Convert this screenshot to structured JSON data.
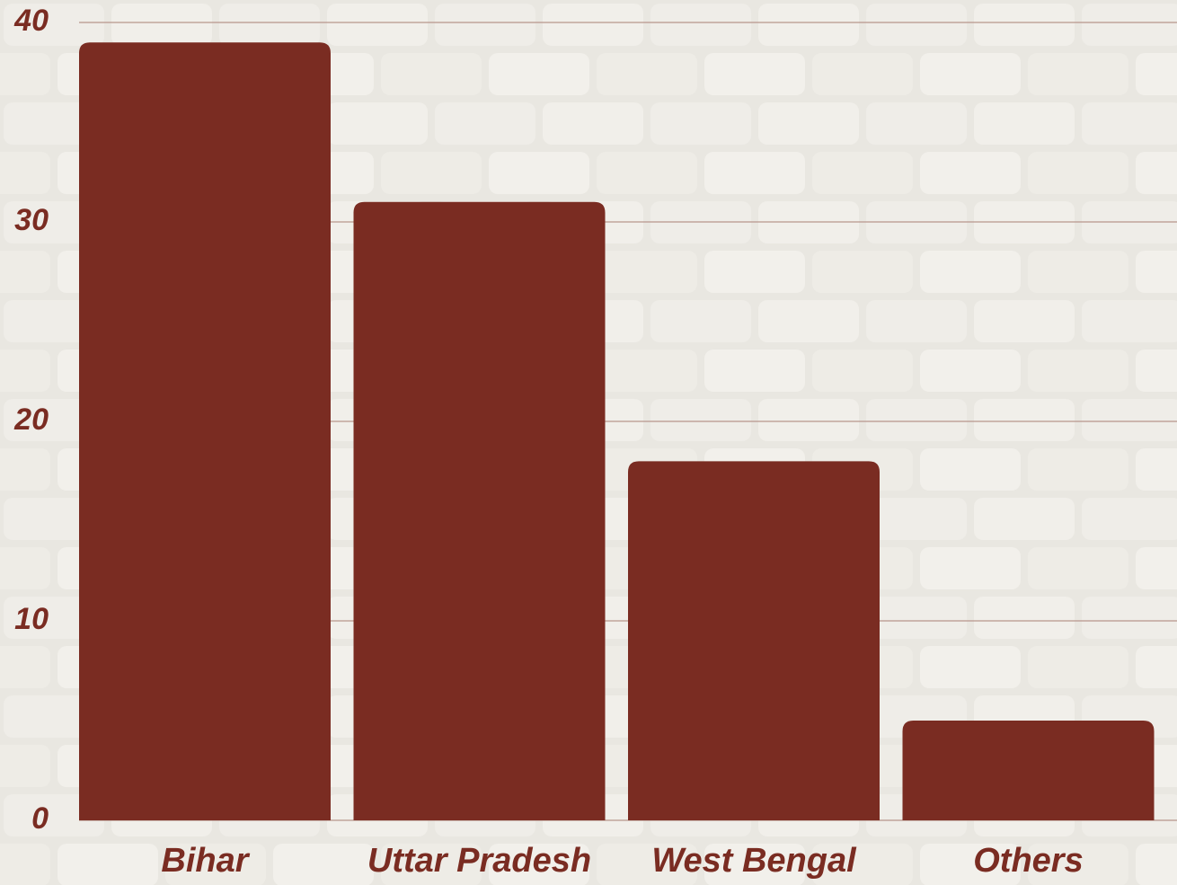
{
  "chart_data": {
    "type": "bar",
    "categories": [
      "Bihar",
      "Uttar Pradesh",
      "West Bengal",
      "Others"
    ],
    "values": [
      39,
      31,
      18,
      5
    ],
    "color": "#7a2c22",
    "ylim": [
      0,
      40
    ],
    "yticks": [
      0,
      10,
      20,
      30,
      40
    ],
    "grid": true
  }
}
